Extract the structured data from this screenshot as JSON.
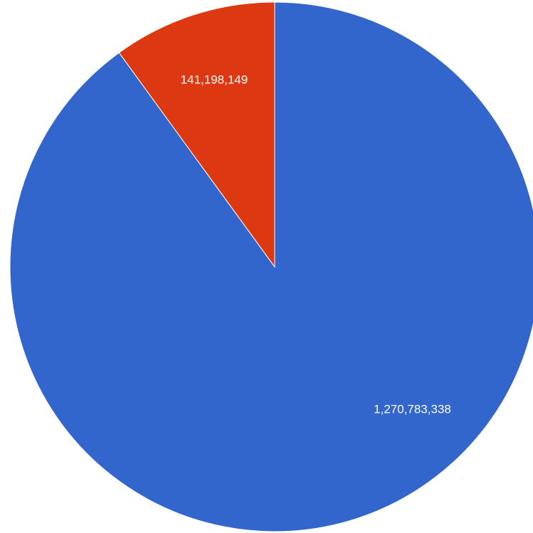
{
  "chart_data": {
    "type": "pie",
    "title": "",
    "start_angle_deg": 0,
    "direction": "clockwise",
    "slices": [
      {
        "label": "1,270,783,338",
        "value": 1270783338,
        "color": "#3366cc"
      },
      {
        "label": "141,198,149",
        "value": 141198149,
        "color": "#dc3912"
      }
    ],
    "legend": "none"
  }
}
